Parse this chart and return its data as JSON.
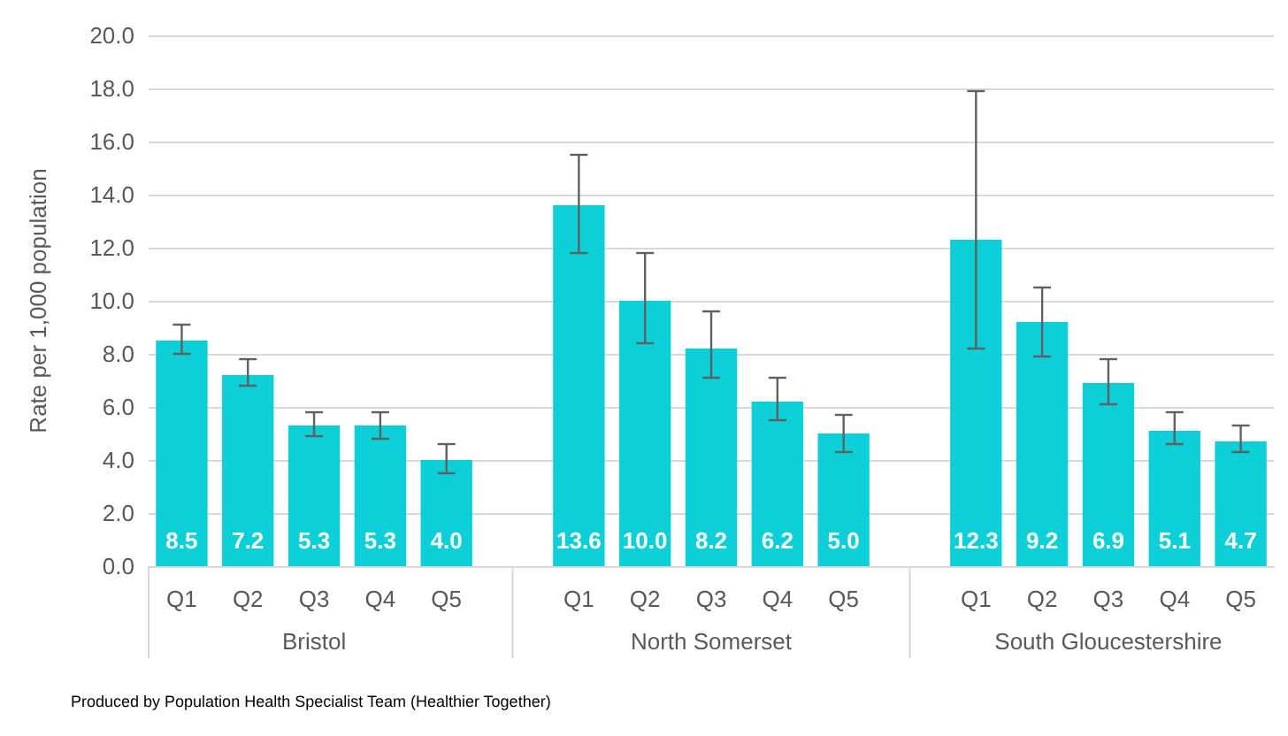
{
  "chart_data": {
    "type": "bar",
    "ylabel": "Rate per 1,000 population",
    "categories": [
      "Q1",
      "Q2",
      "Q3",
      "Q4",
      "Q5",
      null,
      "Q1",
      "Q2",
      "Q3",
      "Q4",
      "Q5",
      null,
      "Q1",
      "Q2",
      "Q3",
      "Q4",
      "Q5"
    ],
    "values": [
      8.5,
      7.2,
      5.3,
      5.3,
      4.0,
      null,
      13.6,
      10.0,
      8.2,
      6.2,
      5.0,
      null,
      12.3,
      9.2,
      6.9,
      5.1,
      4.7
    ],
    "errors": [
      [
        8.0,
        9.1
      ],
      [
        6.8,
        7.8
      ],
      [
        4.9,
        5.8
      ],
      [
        4.8,
        5.8
      ],
      [
        3.5,
        4.6
      ],
      null,
      [
        11.8,
        15.5
      ],
      [
        8.4,
        11.8
      ],
      [
        7.1,
        9.6
      ],
      [
        5.5,
        7.1
      ],
      [
        4.3,
        5.7
      ],
      null,
      [
        8.2,
        17.9
      ],
      [
        7.9,
        10.5
      ],
      [
        6.1,
        7.8
      ],
      [
        4.6,
        5.8
      ],
      [
        4.3,
        5.3
      ]
    ],
    "color": "#0ccfd8",
    "value_labels": [
      "8.5",
      "7.2",
      "5.3",
      "5.3",
      "4.0",
      null,
      "13.6",
      "10.0",
      "8.2",
      "6.2",
      "5.0",
      null,
      "12.3",
      "9.2",
      "6.9",
      "5.1",
      "4.7"
    ],
    "ylim": [
      0,
      20
    ],
    "yticks": [
      {
        "value": 0,
        "label": "0.0"
      },
      {
        "value": 2,
        "label": "2.0"
      },
      {
        "value": 4,
        "label": "4.0"
      },
      {
        "value": 6,
        "label": "6.0"
      },
      {
        "value": 8,
        "label": "8.0"
      },
      {
        "value": 10,
        "label": "10.0"
      },
      {
        "value": 12,
        "label": "12.0"
      },
      {
        "value": 14,
        "label": "14.0"
      },
      {
        "value": 16,
        "label": "16.0"
      },
      {
        "value": 18,
        "label": "18.0"
      },
      {
        "value": 20,
        "label": "20.0"
      }
    ],
    "grid": "y",
    "annotations": [
      "Bristol",
      "North Somerset",
      "South Gloucestershire",
      "Produced by Population Health Specialist Team (Healthier Together)"
    ]
  }
}
